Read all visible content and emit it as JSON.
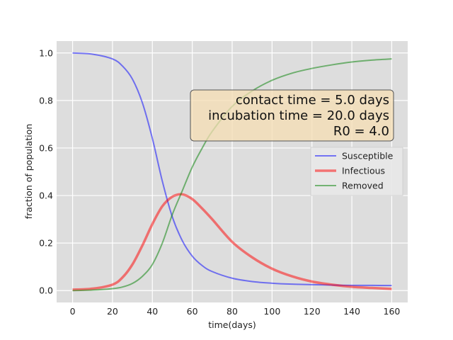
{
  "chart_data": {
    "type": "line",
    "title": "",
    "xlabel": "time(days)",
    "ylabel": "fraction of population",
    "xlim": [
      -8,
      168
    ],
    "ylim": [
      -0.05,
      1.05
    ],
    "xticks": [
      0,
      20,
      40,
      60,
      80,
      100,
      120,
      140,
      160
    ],
    "xtick_labels": [
      "0",
      "20",
      "40",
      "60",
      "80",
      "100",
      "120",
      "140",
      "160"
    ],
    "yticks": [
      0.0,
      0.2,
      0.4,
      0.6,
      0.8,
      1.0
    ],
    "ytick_labels": [
      "0.0",
      "0.2",
      "0.4",
      "0.6",
      "0.8",
      "1.0"
    ],
    "grid": true,
    "legend_position": "right",
    "annotation": {
      "lines": [
        "contact time = 5.0 days",
        "incubation time = 20.0 days",
        "R0 = 4.0"
      ]
    },
    "x": [
      0,
      10,
      20,
      25,
      30,
      35,
      40,
      45,
      50,
      55,
      60,
      65,
      70,
      80,
      90,
      100,
      110,
      120,
      130,
      140,
      150,
      160
    ],
    "series": [
      {
        "name": "Susceptible",
        "color": "#0000ff",
        "values": [
          1.0,
          0.995,
          0.975,
          0.945,
          0.89,
          0.79,
          0.64,
          0.46,
          0.31,
          0.21,
          0.145,
          0.105,
          0.08,
          0.052,
          0.038,
          0.031,
          0.027,
          0.025,
          0.023,
          0.022,
          0.022,
          0.021
        ]
      },
      {
        "name": "Infectious",
        "color": "#ff0000",
        "values": [
          0.004,
          0.008,
          0.025,
          0.055,
          0.11,
          0.19,
          0.28,
          0.355,
          0.395,
          0.405,
          0.385,
          0.345,
          0.3,
          0.205,
          0.14,
          0.092,
          0.06,
          0.038,
          0.025,
          0.016,
          0.011,
          0.007
        ]
      },
      {
        "name": "Removed",
        "color": "#008000",
        "values": [
          0.0,
          0.002,
          0.008,
          0.015,
          0.03,
          0.06,
          0.11,
          0.2,
          0.32,
          0.42,
          0.52,
          0.6,
          0.67,
          0.775,
          0.84,
          0.885,
          0.915,
          0.935,
          0.95,
          0.962,
          0.97,
          0.975
        ]
      }
    ]
  }
}
